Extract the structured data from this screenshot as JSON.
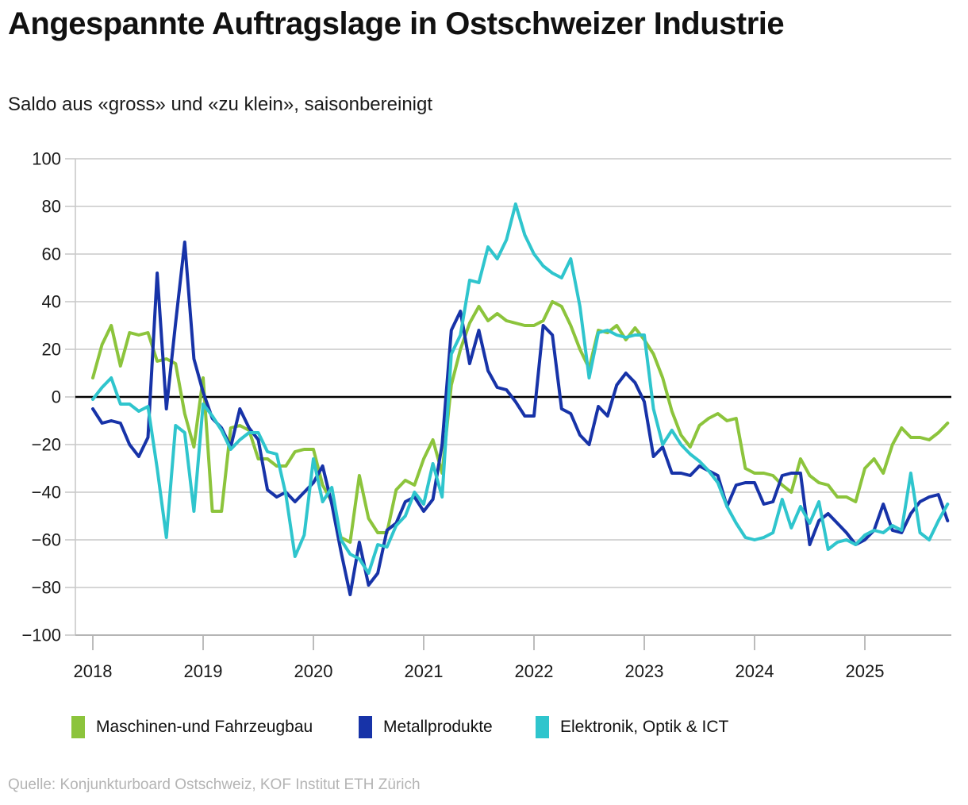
{
  "title": "Angespannte Auftragslage in Ostschweizer Industrie",
  "subtitle": "Saldo aus «gross» und «zu klein», saisonbereinigt",
  "source": "Quelle: Konjunkturboard Ostschweiz, KOF Institut ETH Zürich",
  "colors": {
    "green": "#8cc43c",
    "blue": "#1733a8",
    "cyan": "#2fc5cd",
    "gridline": "#c9c9c9",
    "axis": "#b5b5b5",
    "zero_line": "#000000",
    "tick_label": "#1a1a1a",
    "source_text": "#b4b4b4"
  },
  "chart_data": {
    "type": "line",
    "title": "Angespannte Auftragslage in Ostschweizer Industrie",
    "subtitle": "Saldo aus «gross» und «zu klein», saisonbereinigt",
    "xlabel": "",
    "ylabel": "",
    "x_unit": "month",
    "x_start": "2018-01",
    "x_end": "2025-10",
    "x_tick_labels": [
      "2018",
      "2019",
      "2020",
      "2021",
      "2022",
      "2023",
      "2024",
      "2025"
    ],
    "y_ticks": [
      100,
      80,
      60,
      40,
      20,
      0,
      -20,
      -40,
      -60,
      -80,
      -100
    ],
    "ylim": [
      -100,
      100
    ],
    "grid": "horizontal",
    "zero_line": true,
    "legend_position": "bottom",
    "series": [
      {
        "name": "Maschinen-und Fahrzeugbau",
        "color": "#8cc43c",
        "values": [
          8,
          22,
          30,
          13,
          27,
          26,
          27,
          15,
          16,
          14,
          -7,
          -21,
          8,
          -48,
          -48,
          -13,
          -12,
          -14,
          -26,
          -26,
          -29,
          -29,
          -23,
          -22,
          -22,
          -37,
          -44,
          -59,
          -61,
          -33,
          -51,
          -57,
          -57,
          -39,
          -35,
          -37,
          -26,
          -18,
          -32,
          5,
          20,
          31,
          38,
          32,
          35,
          32,
          31,
          30,
          30,
          32,
          40,
          38,
          30,
          20,
          12,
          28,
          27,
          30,
          24,
          29,
          24,
          18,
          8,
          -6,
          -16,
          -21,
          -12,
          -9,
          -7,
          -10,
          -9,
          -30,
          -32,
          -32,
          -33,
          -37,
          -40,
          -26,
          -33,
          -36,
          -37,
          -42,
          -42,
          -44,
          -30,
          -26,
          -32,
          -20,
          -13,
          -17,
          -17,
          -18,
          -15,
          -11
        ]
      },
      {
        "name": "Metallprodukte",
        "color": "#1733a8",
        "values": [
          -5,
          -11,
          -10,
          -11,
          -20,
          -25,
          -17,
          52,
          -5,
          31,
          65,
          16,
          2,
          -9,
          -13,
          -21,
          -5,
          -13,
          -18,
          -39,
          -42,
          -40,
          -44,
          -40,
          -36,
          -29,
          -45,
          -65,
          -83,
          -61,
          -79,
          -74,
          -56,
          -53,
          -44,
          -42,
          -48,
          -43,
          -20,
          28,
          36,
          14,
          28,
          11,
          4,
          3,
          -2,
          -8,
          -8,
          30,
          26,
          -5,
          -7,
          -16,
          -20,
          -4,
          -8,
          5,
          10,
          6,
          -2,
          -25,
          -21,
          -32,
          -32,
          -33,
          -29,
          -31,
          -33,
          -46,
          -37,
          -36,
          -36,
          -45,
          -44,
          -33,
          -32,
          -32,
          -62,
          -52,
          -49,
          -53,
          -57,
          -62,
          -60,
          -56,
          -45,
          -56,
          -57,
          -49,
          -44,
          -42,
          -41,
          -52
        ]
      },
      {
        "name": "Elektronik, Optik & ICT",
        "color": "#2fc5cd",
        "values": [
          -1,
          4,
          8,
          -3,
          -3,
          -6,
          -4,
          -30,
          -59,
          -12,
          -15,
          -48,
          -3,
          -8,
          -14,
          -22,
          -18,
          -15,
          -15,
          -23,
          -24,
          -41,
          -67,
          -58,
          -26,
          -44,
          -38,
          -60,
          -66,
          -68,
          -74,
          -62,
          -63,
          -54,
          -50,
          -40,
          -45,
          -28,
          -42,
          18,
          26,
          49,
          48,
          63,
          58,
          66,
          81,
          68,
          60,
          55,
          52,
          50,
          58,
          38,
          8,
          27,
          28,
          26,
          25,
          26,
          26,
          -5,
          -20,
          -14,
          -20,
          -24,
          -27,
          -31,
          -36,
          -46,
          -53,
          -59,
          -60,
          -59,
          -57,
          -43,
          -55,
          -46,
          -53,
          -44,
          -64,
          -61,
          -60,
          -62,
          -58,
          -56,
          -57,
          -54,
          -56,
          -32,
          -57,
          -60,
          -52,
          -45
        ]
      }
    ]
  }
}
